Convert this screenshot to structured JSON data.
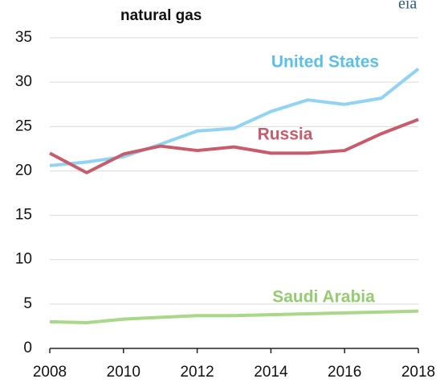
{
  "chart_data": {
    "type": "line",
    "title": "natural gas",
    "logo": "eia",
    "x": [
      2008,
      2009,
      2010,
      2011,
      2012,
      2013,
      2014,
      2015,
      2016,
      2017,
      2018
    ],
    "xlim": [
      2008,
      2018
    ],
    "xticks": [
      2008,
      2010,
      2012,
      2014,
      2016,
      2018
    ],
    "ylim": [
      0,
      35
    ],
    "yticks": [
      0,
      5,
      10,
      15,
      20,
      25,
      30,
      35
    ],
    "grid": true,
    "series": [
      {
        "name": "United States",
        "color": "#8fd3f5",
        "label_color": "#5bbfeb",
        "values": [
          20.6,
          21.0,
          21.6,
          23.0,
          24.5,
          24.8,
          26.7,
          28.0,
          27.5,
          28.2,
          31.5
        ]
      },
      {
        "name": "Russia",
        "color": "#c95b6b",
        "label_color": "#c95b6b",
        "values": [
          22.0,
          19.8,
          21.9,
          22.8,
          22.3,
          22.7,
          22.0,
          22.0,
          22.3,
          24.2,
          25.8
        ]
      },
      {
        "name": "Saudi Arabia",
        "color": "#a8d888",
        "label_color": "#94cc70",
        "values": [
          3.0,
          2.9,
          3.3,
          3.5,
          3.7,
          3.7,
          3.8,
          3.9,
          4.0,
          4.1,
          4.2
        ]
      }
    ]
  }
}
